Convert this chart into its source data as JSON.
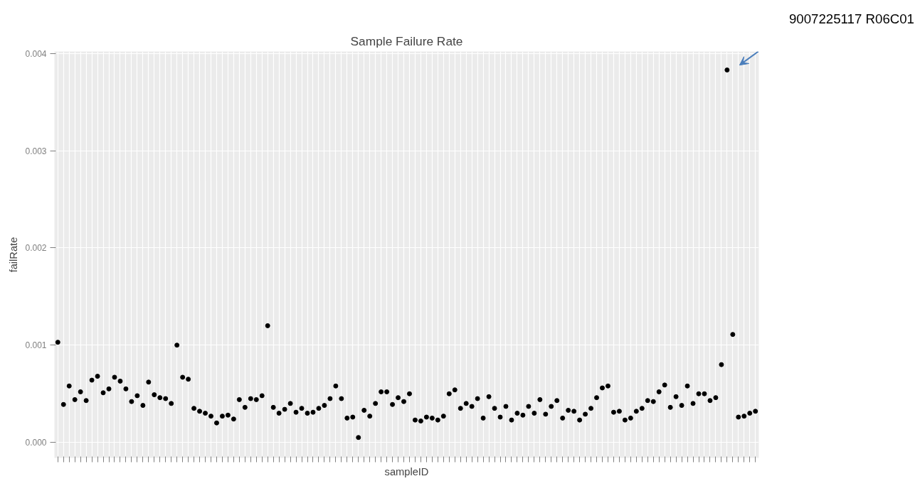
{
  "chart_data": {
    "type": "scatter",
    "title": "Sample Failure Rate",
    "xlabel": "sampleID",
    "ylabel": "failRate",
    "categories": [
      null,
      null,
      null,
      null,
      null,
      null,
      null,
      null,
      null,
      null,
      null,
      null,
      null,
      null,
      null,
      null,
      null,
      null,
      null,
      null,
      null,
      null,
      null,
      null,
      null,
      null,
      null,
      null,
      null,
      null,
      null,
      null,
      null,
      null,
      null,
      null,
      null,
      null,
      null,
      null,
      null,
      null,
      null,
      null,
      null,
      null,
      null,
      null,
      null,
      null,
      null,
      null,
      null,
      null,
      null,
      null,
      null,
      null,
      null,
      null,
      null,
      null,
      null,
      null,
      null,
      null,
      null,
      null,
      null,
      null,
      null,
      null,
      null,
      null,
      null,
      null,
      null,
      null,
      null,
      null,
      null,
      null,
      null,
      null,
      null,
      null,
      null,
      null,
      null,
      null,
      null,
      null,
      null,
      null,
      null,
      null,
      null,
      null,
      null,
      null,
      null,
      null,
      null,
      null,
      null,
      null,
      null,
      null,
      null,
      null,
      null,
      null,
      null,
      null,
      null,
      null,
      null,
      null,
      null,
      null,
      null,
      null,
      null,
      null
    ],
    "series": [
      {
        "color": "#000000",
        "values": [
          0.00103,
          0.00039,
          0.00058,
          0.00044,
          0.00052,
          0.00043,
          0.00064,
          0.00068,
          0.00051,
          0.00055,
          0.00067,
          0.00063,
          0.00055,
          0.00042,
          0.00048,
          0.00038,
          0.00062,
          0.00049,
          0.00046,
          0.00045,
          0.0004,
          0.001,
          0.00067,
          0.00065,
          0.00035,
          0.00032,
          0.0003,
          0.00027,
          0.0002,
          0.00027,
          0.00028,
          0.00024,
          0.00044,
          0.00036,
          0.00045,
          0.00044,
          0.00048,
          0.0012,
          0.00036,
          0.0003,
          0.00034,
          0.0004,
          0.00031,
          0.00035,
          0.0003,
          0.00031,
          0.00035,
          0.00038,
          0.00045,
          0.00058,
          0.00045,
          0.00025,
          0.00026,
          5e-05,
          0.00033,
          0.00027,
          0.0004,
          0.00052,
          0.00052,
          0.00039,
          0.00046,
          0.00042,
          0.0005,
          0.00023,
          0.00022,
          0.00026,
          0.00025,
          0.00023,
          0.00027,
          0.0005,
          0.00054,
          0.00035,
          0.0004,
          0.00037,
          0.00045,
          0.00025,
          0.00047,
          0.00035,
          0.00026,
          0.00037,
          0.00023,
          0.0003,
          0.00028,
          0.00037,
          0.0003,
          0.00044,
          0.00029,
          0.00037,
          0.00043,
          0.00025,
          0.00033,
          0.00032,
          0.00023,
          0.00029,
          0.00035,
          0.00046,
          0.00056,
          0.00058,
          0.00031,
          0.00032,
          0.00023,
          0.00025,
          0.00032,
          0.00035,
          0.00043,
          0.00042,
          0.00052,
          0.00059,
          0.00036,
          0.00047,
          0.00038,
          0.00058,
          0.0004,
          0.0005,
          0.0005,
          0.00043,
          0.00046,
          0.0008,
          0.00383,
          0.00111,
          0.00026,
          0.00027,
          0.0003,
          0.00032
        ]
      }
    ],
    "ylim": [
      -0.00016,
      0.00402
    ],
    "yticks": [
      {
        "value": 0,
        "label": "0.000"
      },
      {
        "value": 0.001,
        "label": "0.001"
      },
      {
        "value": 0.002,
        "label": "0.002"
      },
      {
        "value": 0.003,
        "label": "0.003"
      },
      {
        "value": 0.004,
        "label": "0.004"
      }
    ],
    "grid": true,
    "marker": "circle",
    "annotations": [
      "9007225117  R06C01"
    ]
  }
}
